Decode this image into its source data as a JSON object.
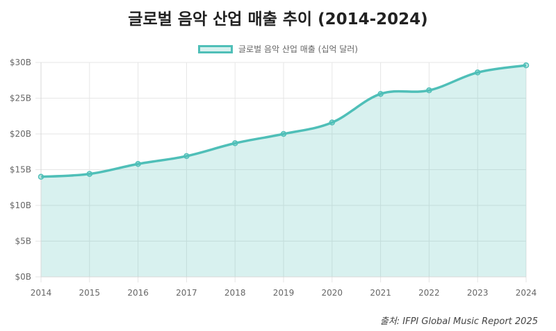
{
  "chart_data": {
    "type": "area",
    "title": "글로벌 음악 산업 매출 추이 (2014-2024)",
    "x": [
      "2014",
      "2015",
      "2016",
      "2017",
      "2018",
      "2019",
      "2020",
      "2021",
      "2022",
      "2023",
      "2024"
    ],
    "series": [
      {
        "name": "글로벌 음악 산업 매출 (십억 달러)",
        "values": [
          14.0,
          14.4,
          15.8,
          16.9,
          18.7,
          20.0,
          21.6,
          25.6,
          26.1,
          28.6,
          29.6
        ]
      }
    ],
    "yticks": [
      "$0B",
      "$5B",
      "$10B",
      "$15B",
      "$20B",
      "$25B",
      "$30B"
    ],
    "ylim": [
      0,
      30
    ],
    "grid": true,
    "legend_position": "top",
    "colors": {
      "line": "#4fbfb8",
      "fill": "rgba(79,191,184,0.22)"
    }
  },
  "source": "출처: IFPI Global Music Report 2025"
}
